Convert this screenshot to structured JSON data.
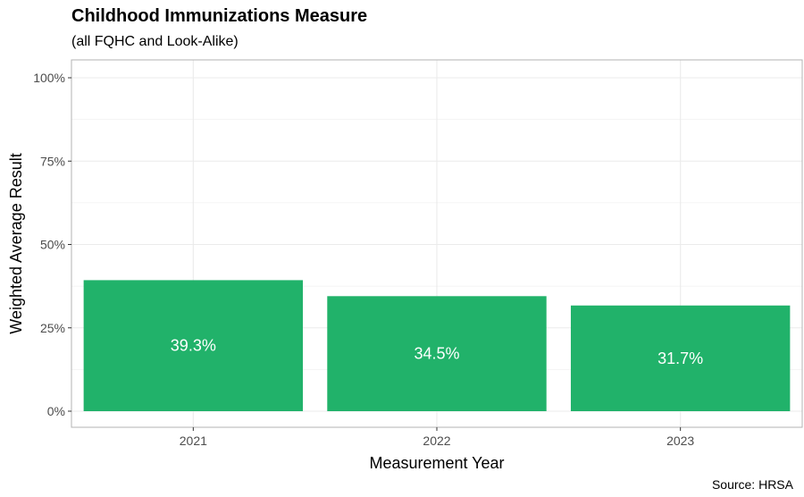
{
  "header": {
    "title": "Childhood Immunizations Measure",
    "subtitle": "(all FQHC and Look-Alike)"
  },
  "caption": "Source: HRSA",
  "chart_data": {
    "type": "bar",
    "categories": [
      "2021",
      "2022",
      "2023"
    ],
    "values": [
      39.3,
      34.5,
      31.7
    ],
    "data_labels": [
      "39.3%",
      "34.5%",
      "31.7%"
    ],
    "xlabel": "Measurement Year",
    "ylabel": "Weighted Average Result",
    "ylim": [
      0,
      100
    ],
    "yticks": [
      0,
      25,
      50,
      75,
      100
    ],
    "ytick_labels": [
      "0%",
      "25%",
      "50%",
      "75%",
      "100%"
    ],
    "grid": true,
    "legend": "none",
    "bar_color": "#21B26A",
    "grid_color": "#EBEBEB",
    "panel_border_color": "#B3B3B3"
  }
}
